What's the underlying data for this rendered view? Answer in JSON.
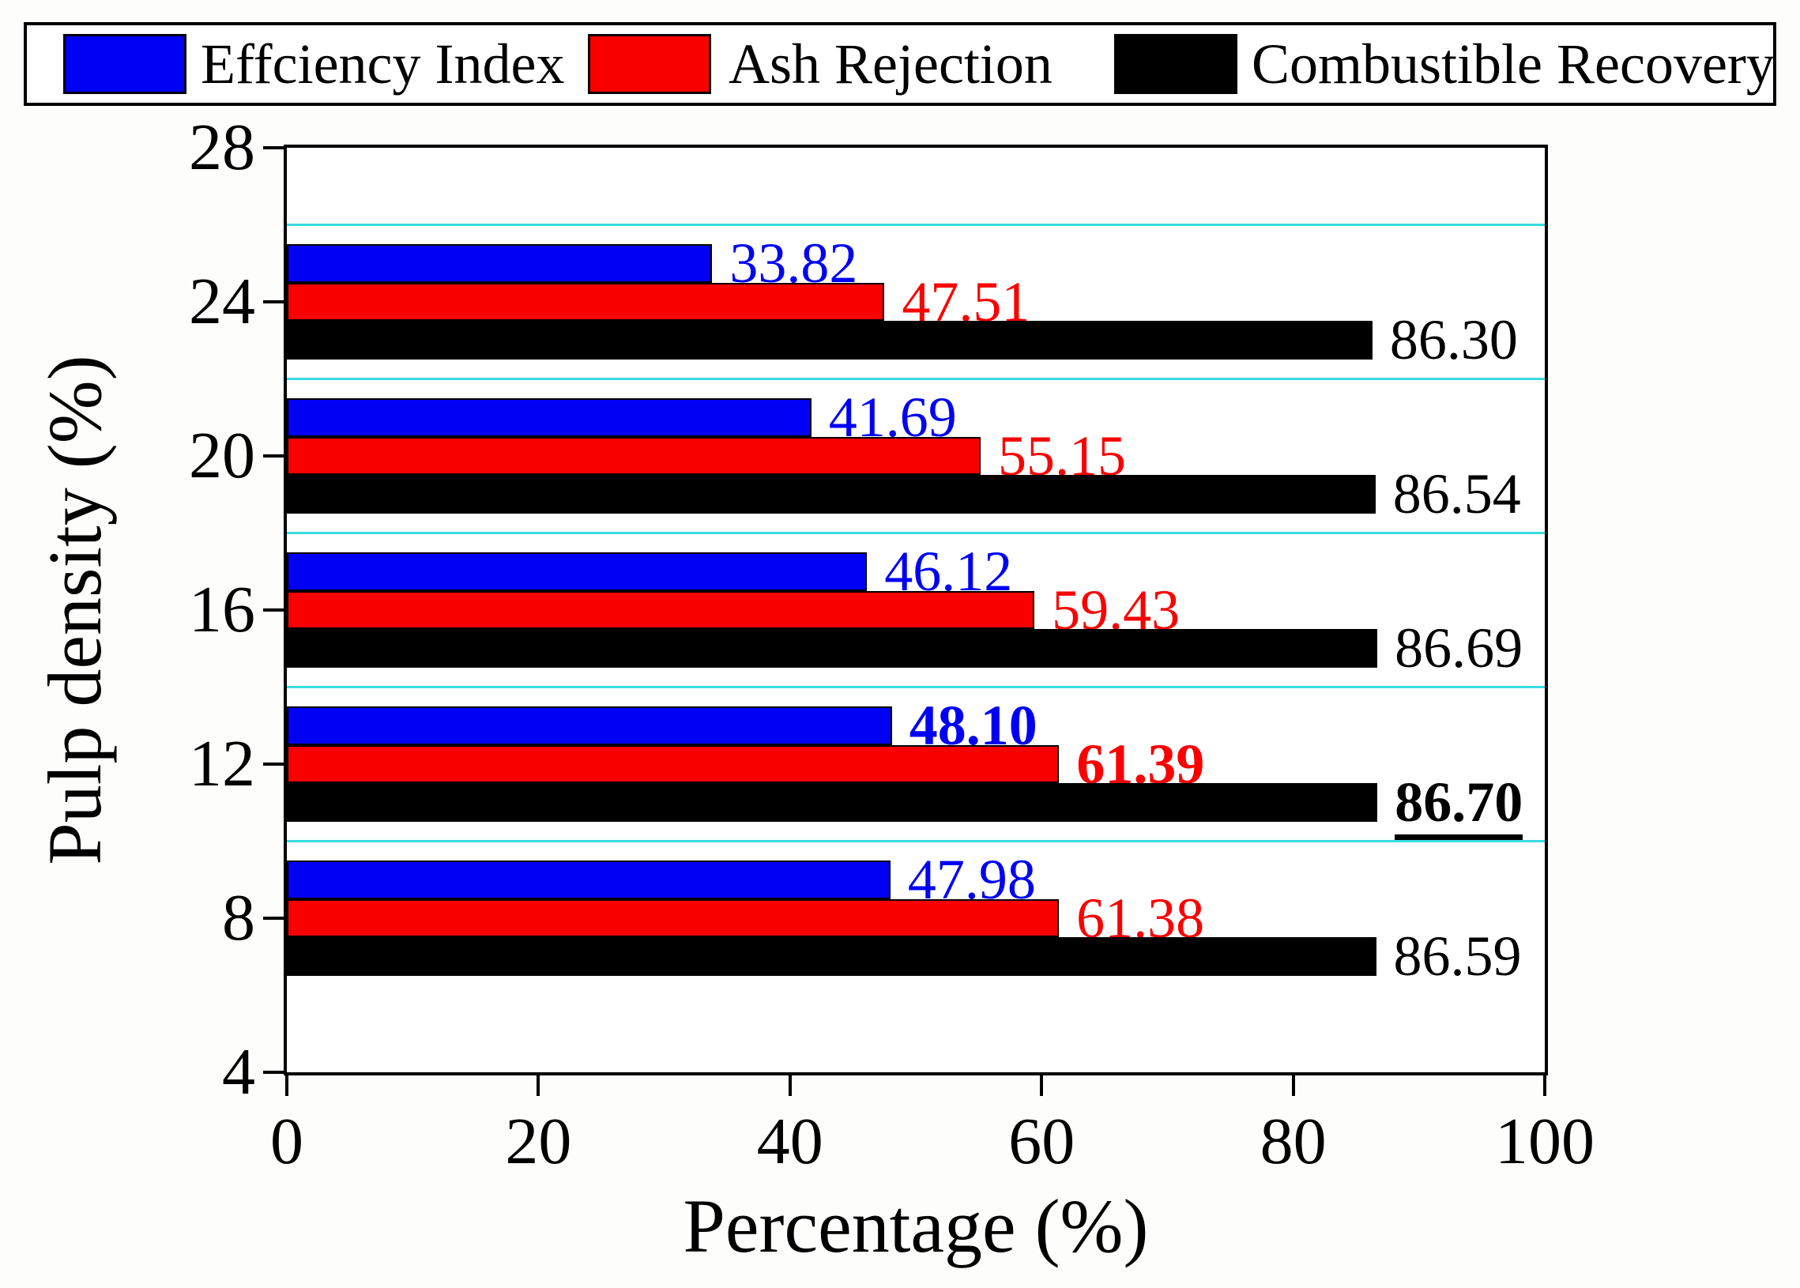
{
  "legend": {
    "items": [
      {
        "label": "Effciency Index",
        "color": "#0000f5"
      },
      {
        "label": "Ash Rejection",
        "color": "#fb0000"
      },
      {
        "label": "Combustible Recovery",
        "color": "#000000"
      }
    ]
  },
  "chart_data": {
    "type": "bar",
    "orientation": "horizontal",
    "title": "",
    "xlabel": "Percentage (%)",
    "ylabel": "Pulp density (%)",
    "xlim": [
      0,
      100
    ],
    "ylim": [
      4,
      28
    ],
    "x_ticks": [
      "0",
      "20",
      "40",
      "60",
      "80",
      "100"
    ],
    "x_tick_values": [
      0,
      20,
      40,
      60,
      80,
      100
    ],
    "y_ticks": [
      "28",
      "24",
      "20",
      "16",
      "12",
      "8",
      "4"
    ],
    "y_tick_values": [
      28,
      24,
      20,
      16,
      12,
      8,
      4
    ],
    "grid_on": true,
    "gridlines_at": [
      26,
      22,
      18,
      14,
      10
    ],
    "grid_color": "#38dce2",
    "legend_position": "top",
    "categories": [
      24,
      20,
      16,
      12,
      8
    ],
    "emphasized_category": 12,
    "series": [
      {
        "name": "Effciency Index",
        "color": "#0000f5",
        "values": [
          33.82,
          41.69,
          46.12,
          48.1,
          47.98
        ],
        "labels": [
          "33.82",
          "41.69",
          "46.12",
          "48.10",
          "47.98"
        ]
      },
      {
        "name": "Ash Rejection",
        "color": "#fb0000",
        "values": [
          47.51,
          55.15,
          59.43,
          61.39,
          61.38
        ],
        "labels": [
          "47.51",
          "55.15",
          "59.43",
          "61.39",
          "61.38"
        ]
      },
      {
        "name": "Combustible Recovery",
        "color": "#000000",
        "values": [
          86.3,
          86.54,
          86.69,
          86.7,
          86.59
        ],
        "labels": [
          "86.30",
          "86.54",
          "86.69",
          "86.70",
          "86.59"
        ]
      }
    ]
  }
}
